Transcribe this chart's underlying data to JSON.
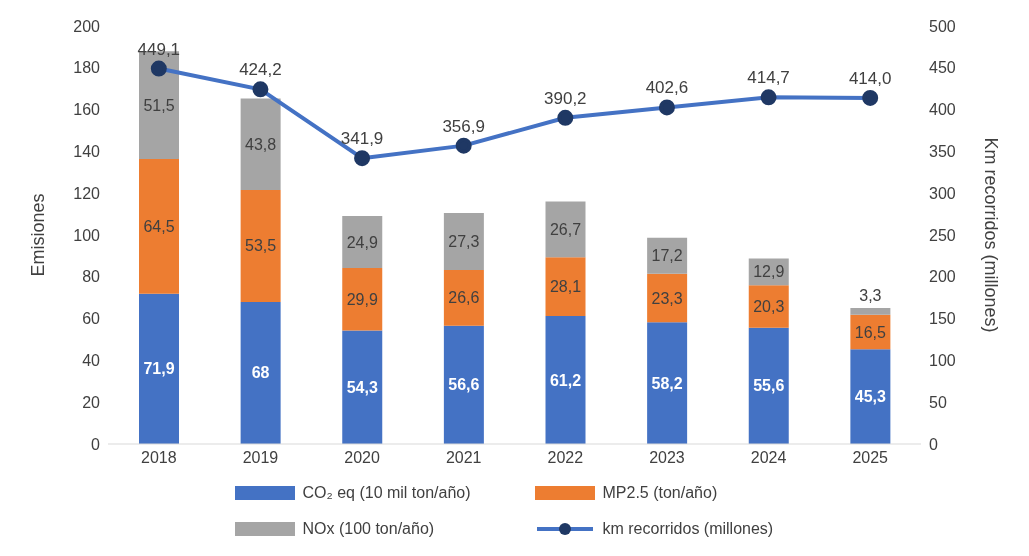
{
  "chart_data": {
    "type": "bar",
    "stacked": true,
    "categories": [
      "2018",
      "2019",
      "2020",
      "2021",
      "2022",
      "2023",
      "2024",
      "2025"
    ],
    "ylabel": "Emisiones",
    "y2label": "Km recorridos (millones)",
    "ylim": [
      0,
      200
    ],
    "yticks": [
      0,
      20,
      40,
      60,
      80,
      100,
      120,
      140,
      160,
      180,
      200
    ],
    "y2lim": [
      0,
      500
    ],
    "y2ticks": [
      0,
      50,
      100,
      150,
      200,
      250,
      300,
      350,
      400,
      450,
      500
    ],
    "legend": "bottom",
    "grid": false,
    "series": [
      {
        "name": "CO₂ eq (10 mil ton/año)",
        "color": "#4472c4",
        "values": [
          71.9,
          68,
          54.3,
          56.6,
          61.2,
          58.2,
          55.6,
          45.3
        ],
        "value_labels": [
          "71,9",
          "68",
          "54,3",
          "56,6",
          "61,2",
          "58,2",
          "55,6",
          "45,3"
        ]
      },
      {
        "name": "MP2.5 (ton/año)",
        "color": "#ed7d31",
        "values": [
          64.5,
          53.5,
          29.9,
          26.6,
          28.1,
          23.3,
          20.3,
          16.5
        ],
        "value_labels": [
          "64,5",
          "53,5",
          "29,9",
          "26,6",
          "28,1",
          "23,3",
          "20,3",
          "16,5"
        ]
      },
      {
        "name": "NOx (100 ton/año)",
        "color": "#a5a5a5",
        "values": [
          51.5,
          43.8,
          24.9,
          27.3,
          26.7,
          17.2,
          12.9,
          3.3
        ],
        "value_labels": [
          "51,5",
          "43,8",
          "24,9",
          "27,3",
          "26,7",
          "17,2",
          "12,9",
          "3,3"
        ]
      },
      {
        "name": "km recorridos (millones)",
        "type": "line",
        "axis": "y2",
        "marker": "circle",
        "line_style": "solid",
        "color": "#4472c4",
        "values": [
          449.1,
          424.2,
          341.9,
          356.9,
          390.2,
          402.6,
          414.7,
          414.0
        ],
        "value_labels": [
          "449,1",
          "424,2",
          "341,9",
          "356,9",
          "390,2",
          "402,6",
          "414,7",
          "414,0"
        ]
      }
    ]
  }
}
